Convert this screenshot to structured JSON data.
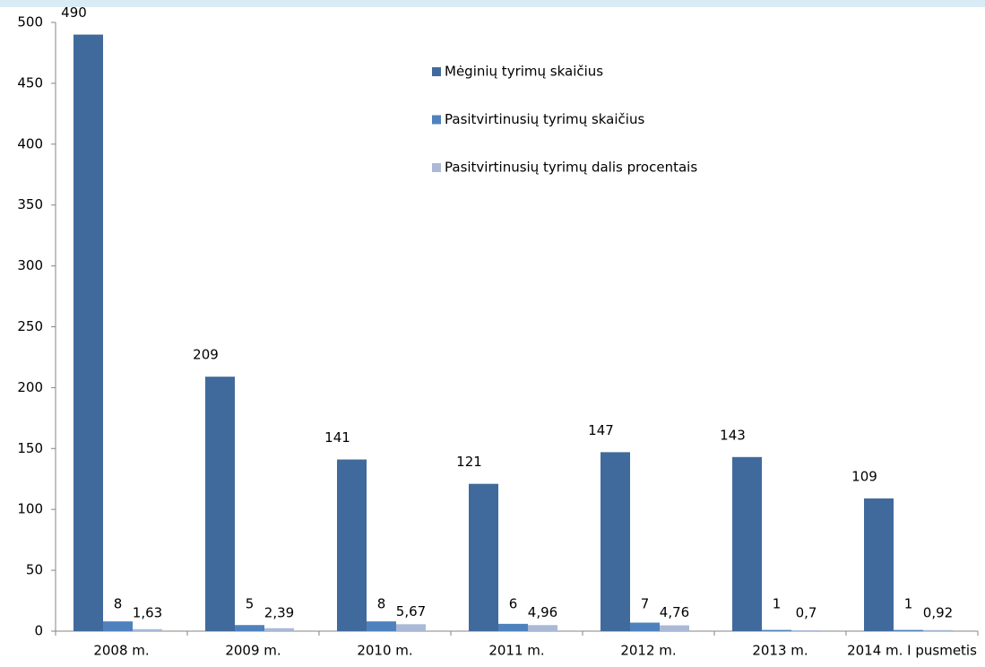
{
  "chart_data": {
    "type": "bar",
    "categories": [
      "2008 m.",
      "2009 m.",
      "2010 m.",
      "2011 m.",
      "2012 m.",
      "2013 m.",
      "2014 m. I pusmetis"
    ],
    "series": [
      {
        "name": "Mėginių tyrimų skaičius",
        "color": "#416a9c",
        "values": [
          490,
          209,
          141,
          121,
          147,
          143,
          109
        ]
      },
      {
        "name": "Pasitvirtinusių tyrimų skaičius",
        "color": "#4f81bd",
        "values": [
          8,
          5,
          8,
          6,
          7,
          1,
          1
        ]
      },
      {
        "name": "Pasitvirtinusių tyrimų dalis procentais",
        "color": "#aab9d6",
        "values": [
          1.63,
          2.39,
          5.67,
          4.96,
          4.76,
          0.7,
          0.92
        ],
        "value_labels": [
          "1,63",
          "2,39",
          "5,67",
          "4,96",
          "4,76",
          "0,7",
          "0,92"
        ]
      }
    ],
    "ylim": [
      0,
      500
    ],
    "yticks": [
      0,
      50,
      100,
      150,
      200,
      250,
      300,
      350,
      400,
      450,
      500
    ],
    "grid": false,
    "legend": "top-right"
  }
}
